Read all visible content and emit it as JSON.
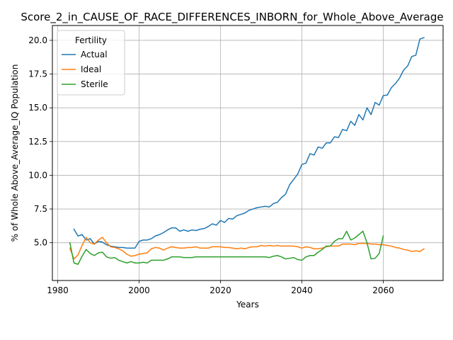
{
  "chart_data": {
    "type": "line",
    "title": "Score_2_in_CAUSE_OF_RACE_DIFFERENCES_INBORN_for_Whole_Above_Average",
    "xlabel": "Years",
    "ylabel": "% of Whole Above_Average_IQ Population",
    "xlim": [
      1978.7,
      2074.7
    ],
    "ylim": [
      2.2,
      21.1
    ],
    "xticks": [
      1980,
      2000,
      2020,
      2040,
      2060
    ],
    "xtick_labels": [
      "1980",
      "2000",
      "2020",
      "2040",
      "2060"
    ],
    "yticks": [
      5.0,
      7.5,
      10.0,
      12.5,
      15.0,
      17.5,
      20.0
    ],
    "ytick_labels": [
      "5.0",
      "7.5",
      "10.0",
      "12.5",
      "15.0",
      "17.5",
      "20.0"
    ],
    "grid": true,
    "legend": {
      "title": "Fertility",
      "location": "upper left",
      "entries": [
        "Actual",
        "Ideal",
        "Sterile"
      ]
    },
    "series": [
      {
        "name": "Actual",
        "color": "#1f77b4",
        "x": [
          1984,
          1985,
          1986,
          1987,
          1988,
          1989,
          1990,
          1991,
          1992,
          1993,
          1994,
          1995,
          1996,
          1997,
          1998,
          1999,
          2000,
          2001,
          2002,
          2003,
          2004,
          2005,
          2006,
          2007,
          2008,
          2009,
          2010,
          2011,
          2012,
          2013,
          2014,
          2015,
          2016,
          2017,
          2018,
          2019,
          2020,
          2021,
          2022,
          2023,
          2024,
          2025,
          2026,
          2027,
          2028,
          2029,
          2030,
          2031,
          2032,
          2033,
          2034,
          2035,
          2036,
          2037,
          2038,
          2039,
          2040,
          2041,
          2042,
          2043,
          2044,
          2045,
          2046,
          2047,
          2048,
          2049,
          2050,
          2051,
          2052,
          2053,
          2054,
          2055,
          2056,
          2057,
          2058,
          2059,
          2060,
          2061,
          2062,
          2063,
          2064,
          2065,
          2066,
          2067,
          2068,
          2069,
          2070
        ],
        "y": [
          6.0,
          5.5,
          5.6,
          5.2,
          5.3,
          4.9,
          5.1,
          5.05,
          4.85,
          4.75,
          4.7,
          4.65,
          4.65,
          4.6,
          4.6,
          4.6,
          5.1,
          5.2,
          5.2,
          5.3,
          5.5,
          5.6,
          5.75,
          5.95,
          6.1,
          6.1,
          5.85,
          5.95,
          5.85,
          5.95,
          5.9,
          6.0,
          6.05,
          6.2,
          6.4,
          6.3,
          6.65,
          6.5,
          6.8,
          6.75,
          7.0,
          7.1,
          7.2,
          7.4,
          7.5,
          7.6,
          7.65,
          7.7,
          7.65,
          7.9,
          8.0,
          8.35,
          8.6,
          9.3,
          9.7,
          10.1,
          10.8,
          10.9,
          11.6,
          11.5,
          12.1,
          12.0,
          12.4,
          12.4,
          12.85,
          12.8,
          13.4,
          13.3,
          14.0,
          13.7,
          14.5,
          14.1,
          15.0,
          14.5,
          15.4,
          15.2,
          15.9,
          15.95,
          16.5,
          16.8,
          17.2,
          17.8,
          18.1,
          18.8,
          18.9,
          20.1,
          20.2
        ]
      },
      {
        "name": "Ideal",
        "color": "#ff7f0e",
        "x": [
          1983,
          1984,
          1985,
          1986,
          1987,
          1988,
          1989,
          1990,
          1991,
          1992,
          1993,
          1994,
          1995,
          1996,
          1997,
          1998,
          1999,
          2000,
          2001,
          2002,
          2003,
          2004,
          2005,
          2006,
          2007,
          2008,
          2009,
          2010,
          2011,
          2012,
          2013,
          2014,
          2015,
          2016,
          2017,
          2018,
          2019,
          2020,
          2021,
          2022,
          2023,
          2024,
          2025,
          2026,
          2027,
          2028,
          2029,
          2030,
          2031,
          2032,
          2033,
          2034,
          2035,
          2036,
          2037,
          2038,
          2039,
          2040,
          2041,
          2042,
          2043,
          2044,
          2045,
          2046,
          2047,
          2048,
          2049,
          2050,
          2051,
          2052,
          2053,
          2054,
          2055,
          2056,
          2057,
          2058,
          2059,
          2060,
          2061,
          2062,
          2063,
          2064,
          2065,
          2066,
          2067,
          2068,
          2069,
          2070
        ],
        "y": [
          4.6,
          3.8,
          4.1,
          4.8,
          5.4,
          5.0,
          4.9,
          5.2,
          5.4,
          5.0,
          4.7,
          4.65,
          4.55,
          4.4,
          4.15,
          4.0,
          4.05,
          4.15,
          4.2,
          4.25,
          4.55,
          4.65,
          4.6,
          4.45,
          4.6,
          4.7,
          4.65,
          4.6,
          4.6,
          4.65,
          4.65,
          4.7,
          4.6,
          4.6,
          4.6,
          4.7,
          4.7,
          4.7,
          4.65,
          4.65,
          4.6,
          4.55,
          4.6,
          4.55,
          4.65,
          4.7,
          4.7,
          4.8,
          4.75,
          4.8,
          4.75,
          4.8,
          4.75,
          4.75,
          4.75,
          4.75,
          4.7,
          4.6,
          4.7,
          4.65,
          4.55,
          4.55,
          4.6,
          4.7,
          4.75,
          4.75,
          4.75,
          4.9,
          4.9,
          4.9,
          4.85,
          4.95,
          4.95,
          4.95,
          4.9,
          4.9,
          4.85,
          4.85,
          4.8,
          4.75,
          4.65,
          4.6,
          4.5,
          4.45,
          4.35,
          4.4,
          4.35,
          4.55
        ]
      },
      {
        "name": "Sterile",
        "color": "#2ca02c",
        "x": [
          1983,
          1984,
          1985,
          1986,
          1987,
          1988,
          1989,
          1990,
          1991,
          1992,
          1993,
          1994,
          1995,
          1996,
          1997,
          1998,
          1999,
          2000,
          2001,
          2002,
          2003,
          2004,
          2005,
          2006,
          2007,
          2008,
          2009,
          2010,
          2011,
          2012,
          2013,
          2014,
          2015,
          2016,
          2017,
          2018,
          2019,
          2020,
          2021,
          2022,
          2023,
          2024,
          2025,
          2026,
          2027,
          2028,
          2029,
          2030,
          2031,
          2032,
          2033,
          2034,
          2035,
          2036,
          2037,
          2038,
          2039,
          2040,
          2041,
          2042,
          2043,
          2044,
          2045,
          2046,
          2047,
          2048,
          2049,
          2050,
          2051,
          2052,
          2053,
          2054,
          2055,
          2056,
          2057,
          2058,
          2059,
          2060
        ],
        "y": [
          5.0,
          3.5,
          3.4,
          4.0,
          4.5,
          4.2,
          4.05,
          4.25,
          4.3,
          3.95,
          3.85,
          3.9,
          3.7,
          3.6,
          3.5,
          3.6,
          3.5,
          3.5,
          3.55,
          3.5,
          3.7,
          3.7,
          3.7,
          3.7,
          3.8,
          3.95,
          3.95,
          3.95,
          3.9,
          3.9,
          3.9,
          3.95,
          3.95,
          3.95,
          3.95,
          3.95,
          3.95,
          3.95,
          3.95,
          3.95,
          3.95,
          3.95,
          3.95,
          3.95,
          3.95,
          3.95,
          3.95,
          3.95,
          3.95,
          3.9,
          4.0,
          4.05,
          3.95,
          3.8,
          3.85,
          3.9,
          3.75,
          3.7,
          3.95,
          4.05,
          4.05,
          4.3,
          4.5,
          4.75,
          4.75,
          5.1,
          5.3,
          5.3,
          5.85,
          5.2,
          5.35,
          5.6,
          5.85,
          5.0,
          3.8,
          3.85,
          4.2,
          5.5
        ]
      }
    ]
  }
}
